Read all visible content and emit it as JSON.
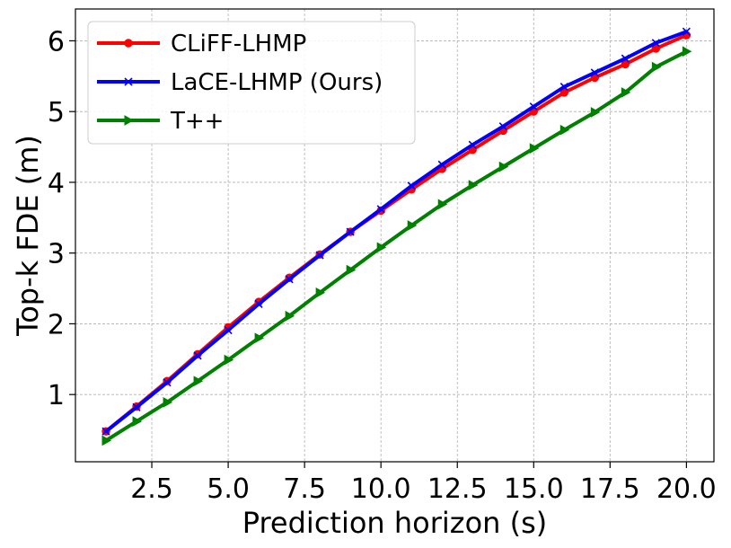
{
  "chart_data": {
    "type": "line",
    "xlabel": "Prediction horizon (s)",
    "ylabel": "Top-k FDE (m)",
    "xlim": [
      0.0,
      20.9
    ],
    "ylim": [
      0.05,
      6.45
    ],
    "xticks": [
      2.5,
      5.0,
      7.5,
      10.0,
      12.5,
      15.0,
      17.5,
      20.0
    ],
    "xtick_labels": [
      "2.5",
      "5.0",
      "7.5",
      "10.0",
      "12.5",
      "15.0",
      "17.5",
      "20.0"
    ],
    "yticks": [
      1,
      2,
      3,
      4,
      5,
      6
    ],
    "ytick_labels": [
      "1",
      "2",
      "3",
      "4",
      "5",
      "6"
    ],
    "grid": true,
    "legend_position": "top-left",
    "x": [
      1,
      2,
      3,
      4,
      5,
      6,
      7,
      8,
      9,
      10,
      11,
      12,
      13,
      14,
      15,
      16,
      17,
      18,
      19,
      20
    ],
    "series": [
      {
        "name": "CLiFF-LHMP",
        "color": "#ff0000",
        "marker": "circle",
        "values": [
          0.48,
          0.83,
          1.19,
          1.57,
          1.95,
          2.31,
          2.65,
          2.98,
          3.3,
          3.6,
          3.9,
          4.19,
          4.46,
          4.73,
          5.0,
          5.27,
          5.48,
          5.67,
          5.89,
          6.08
        ]
      },
      {
        "name": "LaCE-LHMP (Ours)",
        "color": "#0000ff",
        "marker": "x",
        "values": [
          0.48,
          0.82,
          1.17,
          1.55,
          1.91,
          2.28,
          2.63,
          2.97,
          3.3,
          3.62,
          3.95,
          4.25,
          4.53,
          4.79,
          5.07,
          5.35,
          5.55,
          5.75,
          5.97,
          6.13
        ]
      },
      {
        "name": "T++",
        "color": "#008000",
        "marker": "triangle-right",
        "values": [
          0.35,
          0.62,
          0.89,
          1.19,
          1.49,
          1.8,
          2.11,
          2.44,
          2.76,
          3.08,
          3.39,
          3.69,
          3.96,
          4.22,
          4.48,
          4.74,
          4.99,
          5.27,
          5.63,
          5.85
        ]
      }
    ]
  }
}
